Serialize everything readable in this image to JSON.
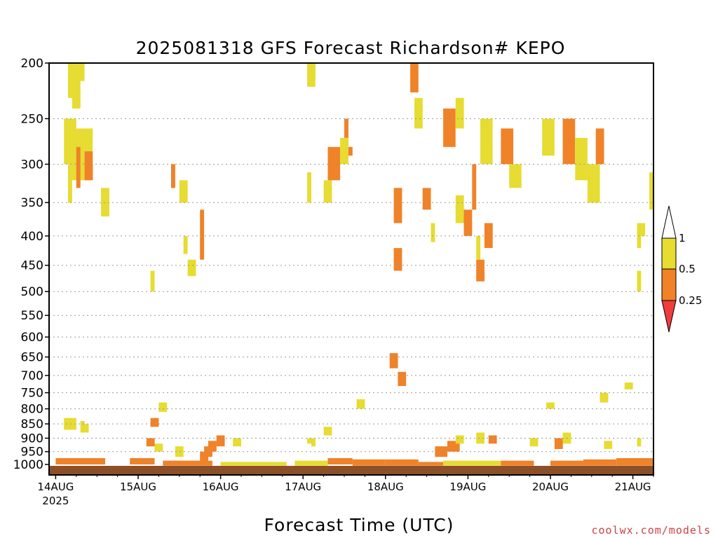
{
  "chart_data": {
    "type": "heatmap",
    "title": "2025081318 GFS Forecast Richardson# KEPO",
    "xlabel": "Forecast Time (UTC)",
    "ylabel": "",
    "credit": "coolwx.com/models",
    "yscale": "log-pressure",
    "ylim": [
      1000,
      200
    ],
    "yticks": [
      200,
      250,
      300,
      350,
      400,
      450,
      500,
      550,
      600,
      650,
      700,
      750,
      800,
      850,
      900,
      950,
      1000
    ],
    "ygrid": true,
    "xticks": [
      {
        "label": "14AUG",
        "sublabel": "2025",
        "day": 0
      },
      {
        "label": "15AUG",
        "sublabel": "",
        "day": 1
      },
      {
        "label": "16AUG",
        "sublabel": "",
        "day": 2
      },
      {
        "label": "17AUG",
        "sublabel": "",
        "day": 3
      },
      {
        "label": "18AUG",
        "sublabel": "",
        "day": 4
      },
      {
        "label": "19AUG",
        "sublabel": "",
        "day": 5
      },
      {
        "label": "20AUG",
        "sublabel": "",
        "day": 6
      },
      {
        "label": "21AUG",
        "sublabel": "",
        "day": 7
      }
    ],
    "xrange_days": [
      -0.08,
      7.25
    ],
    "colorbar": {
      "levels": [
        0.25,
        0.5,
        1
      ],
      "labels": [
        "0.25",
        "0.5",
        "1"
      ],
      "colors": [
        "#f03c3c",
        "#f08228",
        "#e6dc32",
        "#ffffff"
      ],
      "placement": "right"
    },
    "surface_color": "#8c5028",
    "cells": [
      [
        0.15,
        0.35,
        200,
        240,
        2
      ],
      [
        0.3,
        0.4,
        215,
        250,
        3
      ],
      [
        0.05,
        0.2,
        230,
        280,
        3
      ],
      [
        0.1,
        0.25,
        250,
        300,
        2
      ],
      [
        0.2,
        0.45,
        260,
        320,
        2
      ],
      [
        0.25,
        0.3,
        280,
        330,
        1
      ],
      [
        0.35,
        0.45,
        285,
        320,
        1
      ],
      [
        0.45,
        0.55,
        270,
        300,
        3
      ],
      [
        0.55,
        0.65,
        220,
        260,
        3
      ],
      [
        0.05,
        0.15,
        370,
        400,
        3
      ],
      [
        0.15,
        0.2,
        300,
        350,
        2
      ],
      [
        0.55,
        0.65,
        330,
        370,
        2
      ],
      [
        0.45,
        0.55,
        380,
        420,
        3
      ],
      [
        0.65,
        0.7,
        260,
        300,
        3
      ],
      [
        0.7,
        0.8,
        220,
        260,
        3
      ],
      [
        0.9,
        1.0,
        250,
        290,
        3
      ],
      [
        1.1,
        1.15,
        260,
        280,
        3
      ],
      [
        1.25,
        1.3,
        350,
        380,
        3
      ],
      [
        1.35,
        1.45,
        290,
        350,
        3
      ],
      [
        1.4,
        1.45,
        300,
        330,
        1
      ],
      [
        1.45,
        1.6,
        250,
        290,
        3
      ],
      [
        1.5,
        1.6,
        320,
        350,
        2
      ],
      [
        1.65,
        1.75,
        220,
        260,
        3
      ],
      [
        1.75,
        1.85,
        290,
        320,
        3
      ],
      [
        1.55,
        1.6,
        400,
        430,
        2
      ],
      [
        1.6,
        1.7,
        440,
        470,
        2
      ],
      [
        1.7,
        1.75,
        380,
        420,
        3
      ],
      [
        1.9,
        2.05,
        430,
        470,
        3
      ],
      [
        1.95,
        2.05,
        380,
        410,
        3
      ],
      [
        1.75,
        1.8,
        360,
        440,
        1
      ],
      [
        1.85,
        1.95,
        210,
        250,
        3
      ],
      [
        1.8,
        1.85,
        480,
        520,
        3
      ],
      [
        2.25,
        2.35,
        300,
        330,
        3
      ],
      [
        2.15,
        2.25,
        360,
        400,
        3
      ],
      [
        1.15,
        1.2,
        460,
        500,
        2
      ],
      [
        1.1,
        1.15,
        490,
        520,
        3
      ],
      [
        2.85,
        2.95,
        240,
        280,
        3
      ],
      [
        3.0,
        3.05,
        200,
        230,
        3
      ],
      [
        3.05,
        3.15,
        200,
        220,
        2
      ],
      [
        3.15,
        3.25,
        215,
        240,
        3
      ],
      [
        3.2,
        3.3,
        220,
        260,
        3
      ],
      [
        3.35,
        3.45,
        260,
        300,
        3
      ],
      [
        3.25,
        3.35,
        320,
        350,
        2
      ],
      [
        3.3,
        3.45,
        280,
        320,
        1
      ],
      [
        3.5,
        3.6,
        250,
        290,
        1
      ],
      [
        3.45,
        3.55,
        270,
        300,
        2
      ],
      [
        3.55,
        3.65,
        250,
        280,
        3
      ],
      [
        3.6,
        3.7,
        220,
        260,
        3
      ],
      [
        3.8,
        3.85,
        240,
        270,
        3
      ],
      [
        3.05,
        3.1,
        310,
        350,
        2
      ],
      [
        3.15,
        3.25,
        300,
        330,
        3
      ],
      [
        2.65,
        2.75,
        270,
        300,
        3
      ],
      [
        2.75,
        2.8,
        200,
        230,
        3
      ],
      [
        2.6,
        2.7,
        330,
        360,
        3
      ],
      [
        2.85,
        2.95,
        300,
        330,
        3
      ],
      [
        3.95,
        4.05,
        320,
        350,
        3
      ],
      [
        4.1,
        4.2,
        330,
        380,
        1
      ],
      [
        4.2,
        4.3,
        250,
        290,
        3
      ],
      [
        4.25,
        4.35,
        300,
        330,
        3
      ],
      [
        4.3,
        4.4,
        200,
        225,
        1
      ],
      [
        4.4,
        4.5,
        200,
        240,
        3
      ],
      [
        4.35,
        4.45,
        230,
        260,
        2
      ],
      [
        4.5,
        4.6,
        240,
        270,
        3
      ],
      [
        4.45,
        4.55,
        330,
        360,
        1
      ],
      [
        4.0,
        4.1,
        400,
        440,
        3
      ],
      [
        4.1,
        4.2,
        420,
        460,
        1
      ],
      [
        4.2,
        4.25,
        460,
        500,
        3
      ],
      [
        4.25,
        4.35,
        480,
        520,
        3
      ],
      [
        4.3,
        4.45,
        500,
        560,
        3
      ],
      [
        4.55,
        4.6,
        380,
        410,
        2
      ],
      [
        4.7,
        4.85,
        240,
        280,
        1
      ],
      [
        4.85,
        4.95,
        230,
        260,
        2
      ],
      [
        4.95,
        5.1,
        200,
        230,
        3
      ],
      [
        5.05,
        5.1,
        300,
        360,
        1
      ],
      [
        4.85,
        4.95,
        340,
        380,
        2
      ],
      [
        4.95,
        5.05,
        360,
        400,
        1
      ],
      [
        5.1,
        5.15,
        400,
        440,
        2
      ],
      [
        5.1,
        5.2,
        440,
        480,
        1
      ],
      [
        5.2,
        5.3,
        380,
        420,
        1
      ],
      [
        5.2,
        5.3,
        420,
        460,
        3
      ],
      [
        5.15,
        5.3,
        250,
        300,
        2
      ],
      [
        5.3,
        5.5,
        230,
        280,
        3
      ],
      [
        5.4,
        5.55,
        260,
        300,
        1
      ],
      [
        5.5,
        5.65,
        300,
        330,
        2
      ],
      [
        5.55,
        5.65,
        330,
        370,
        3
      ],
      [
        5.65,
        5.75,
        280,
        320,
        3
      ],
      [
        5.8,
        5.95,
        220,
        260,
        3
      ],
      [
        5.9,
        6.05,
        250,
        290,
        2
      ],
      [
        6.05,
        6.2,
        210,
        250,
        3
      ],
      [
        6.15,
        6.3,
        250,
        300,
        1
      ],
      [
        6.3,
        6.45,
        270,
        320,
        2
      ],
      [
        6.45,
        6.6,
        300,
        350,
        2
      ],
      [
        6.6,
        6.7,
        320,
        370,
        3
      ],
      [
        6.55,
        6.65,
        260,
        300,
        1
      ],
      [
        6.35,
        6.45,
        220,
        270,
        3
      ],
      [
        6.7,
        6.85,
        340,
        400,
        3
      ],
      [
        6.8,
        6.9,
        280,
        330,
        3
      ],
      [
        6.95,
        7.05,
        300,
        350,
        3
      ],
      [
        7.05,
        7.15,
        380,
        420,
        2
      ],
      [
        7.1,
        7.2,
        400,
        450,
        3
      ],
      [
        7.15,
        7.25,
        350,
        400,
        3
      ],
      [
        7.2,
        7.25,
        310,
        360,
        2
      ],
      [
        6.95,
        7.05,
        420,
        460,
        3
      ],
      [
        7.05,
        7.1,
        460,
        500,
        2
      ],
      [
        6.5,
        6.55,
        600,
        620,
        3
      ],
      [
        6.3,
        6.35,
        650,
        690,
        3
      ],
      [
        6.15,
        6.25,
        680,
        730,
        3
      ],
      [
        6.4,
        6.5,
        760,
        790,
        3
      ],
      [
        6.6,
        6.7,
        750,
        780,
        2
      ],
      [
        6.9,
        7.0,
        720,
        740,
        2
      ],
      [
        6.95,
        7.05,
        760,
        800,
        3
      ],
      [
        7.05,
        7.1,
        900,
        930,
        2
      ],
      [
        6.85,
        6.95,
        690,
        720,
        3
      ],
      [
        5.95,
        6.05,
        780,
        800,
        2
      ],
      [
        5.7,
        5.8,
        740,
        770,
        3
      ],
      [
        5.55,
        5.65,
        770,
        800,
        3
      ],
      [
        5.6,
        5.7,
        880,
        910,
        3
      ],
      [
        5.75,
        5.85,
        900,
        930,
        2
      ],
      [
        5.9,
        6.0,
        930,
        960,
        3
      ],
      [
        6.05,
        6.15,
        900,
        940,
        1
      ],
      [
        6.15,
        6.25,
        880,
        920,
        2
      ],
      [
        6.25,
        6.35,
        870,
        900,
        3
      ],
      [
        6.55,
        6.65,
        890,
        920,
        3
      ],
      [
        6.65,
        6.75,
        910,
        940,
        2
      ],
      [
        6.8,
        6.9,
        920,
        950,
        3
      ],
      [
        6.95,
        7.05,
        940,
        970,
        3
      ],
      [
        7.1,
        7.2,
        940,
        980,
        3
      ],
      [
        4.35,
        4.45,
        950,
        985,
        3
      ],
      [
        4.5,
        4.6,
        940,
        970,
        3
      ],
      [
        4.6,
        4.75,
        930,
        970,
        1
      ],
      [
        4.75,
        4.9,
        910,
        950,
        1
      ],
      [
        4.85,
        4.95,
        890,
        920,
        2
      ],
      [
        5.0,
        5.1,
        910,
        940,
        3
      ],
      [
        5.1,
        5.2,
        880,
        920,
        2
      ],
      [
        5.25,
        5.35,
        890,
        920,
        1
      ],
      [
        4.05,
        4.15,
        870,
        910,
        3
      ],
      [
        4.15,
        4.25,
        900,
        940,
        3
      ],
      [
        4.2,
        4.3,
        760,
        800,
        3
      ],
      [
        4.15,
        4.25,
        690,
        730,
        1
      ],
      [
        4.05,
        4.15,
        640,
        680,
        1
      ],
      [
        4.0,
        4.05,
        600,
        640,
        3
      ],
      [
        3.85,
        3.9,
        830,
        860,
        3
      ],
      [
        3.65,
        3.75,
        770,
        800,
        2
      ],
      [
        3.45,
        3.55,
        820,
        850,
        3
      ],
      [
        3.15,
        3.25,
        880,
        910,
        3
      ],
      [
        3.25,
        3.35,
        860,
        890,
        2
      ],
      [
        3.3,
        3.4,
        820,
        850,
        3
      ],
      [
        3.05,
        3.15,
        900,
        930,
        2
      ],
      [
        3.0,
        3.1,
        920,
        950,
        3
      ],
      [
        2.7,
        2.8,
        940,
        960,
        3
      ],
      [
        2.35,
        2.45,
        890,
        920,
        3
      ],
      [
        2.25,
        2.35,
        910,
        940,
        3
      ],
      [
        2.15,
        2.25,
        900,
        930,
        2
      ],
      [
        2.0,
        2.1,
        880,
        920,
        3
      ],
      [
        1.95,
        2.05,
        890,
        930,
        1
      ],
      [
        1.85,
        1.95,
        910,
        950,
        1
      ],
      [
        1.8,
        1.9,
        930,
        970,
        1
      ],
      [
        1.75,
        1.85,
        950,
        990,
        1
      ],
      [
        1.55,
        1.65,
        910,
        950,
        3
      ],
      [
        1.45,
        1.55,
        930,
        970,
        2
      ],
      [
        1.35,
        1.45,
        900,
        940,
        3
      ],
      [
        1.2,
        1.3,
        920,
        950,
        2
      ],
      [
        1.1,
        1.2,
        900,
        930,
        1
      ],
      [
        1.2,
        1.3,
        800,
        830,
        3
      ],
      [
        1.25,
        1.35,
        780,
        810,
        2
      ],
      [
        1.15,
        1.25,
        830,
        860,
        1
      ],
      [
        1.3,
        1.4,
        820,
        850,
        3
      ],
      [
        1.15,
        1.25,
        750,
        780,
        3
      ],
      [
        0.9,
        1.0,
        940,
        970,
        3
      ],
      [
        0.0,
        0.1,
        860,
        900,
        3
      ],
      [
        0.1,
        0.25,
        830,
        870,
        2
      ],
      [
        0.15,
        0.25,
        880,
        920,
        3
      ],
      [
        0.3,
        0.4,
        840,
        880,
        2
      ],
      [
        0.35,
        0.45,
        810,
        850,
        3
      ],
      [
        0.25,
        0.35,
        900,
        930,
        3
      ],
      [
        0.05,
        0.15,
        920,
        950,
        3
      ],
      [
        0.9,
        1.2,
        975,
        1000,
        1
      ],
      [
        0.0,
        0.6,
        975,
        1000,
        1
      ],
      [
        1.3,
        1.9,
        985,
        1005,
        1
      ],
      [
        2.0,
        2.8,
        990,
        1005,
        2
      ],
      [
        2.9,
        3.3,
        985,
        1005,
        2
      ],
      [
        3.3,
        3.6,
        975,
        1000,
        1
      ],
      [
        3.6,
        4.0,
        980,
        1005,
        1
      ],
      [
        4.0,
        4.4,
        980,
        1005,
        1
      ],
      [
        4.4,
        4.7,
        990,
        1005,
        1
      ],
      [
        4.7,
        5.4,
        985,
        1005,
        2
      ],
      [
        5.4,
        5.8,
        985,
        1005,
        1
      ],
      [
        6.0,
        6.4,
        985,
        1005,
        1
      ],
      [
        6.4,
        6.8,
        980,
        1005,
        1
      ],
      [
        6.8,
        7.25,
        975,
        1005,
        1
      ]
    ]
  }
}
